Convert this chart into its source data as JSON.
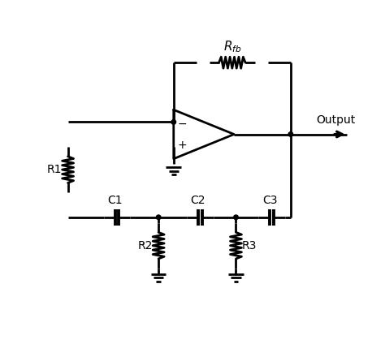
{
  "bg_color": "#ffffff",
  "line_color": "#000000",
  "line_width": 2.0,
  "fig_width": 4.74,
  "fig_height": 4.24,
  "dpi": 100,
  "xlim": [
    0,
    10
  ],
  "ylim": [
    0,
    9
  ]
}
